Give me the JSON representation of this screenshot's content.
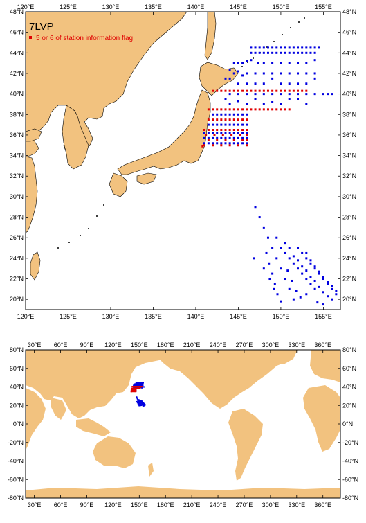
{
  "regional_map": {
    "title": "7LVP",
    "legend": {
      "label": "5 or 6 of station information flag",
      "color": "#e00000"
    },
    "lon_range": [
      120,
      157
    ],
    "lat_range": [
      19,
      48
    ],
    "lon_ticks": [
      "120°E",
      "125°E",
      "130°E",
      "135°E",
      "140°E",
      "145°E",
      "150°E",
      "155°E"
    ],
    "lat_ticks": [
      "20°N",
      "22°N",
      "24°N",
      "26°N",
      "28°N",
      "30°N",
      "32°N",
      "34°N",
      "36°N",
      "38°N",
      "40°N",
      "42°N",
      "44°N",
      "46°N",
      "48°N"
    ]
  },
  "global_map": {
    "lon_range": [
      20,
      380
    ],
    "lat_range": [
      -80,
      80
    ],
    "lon_ticks": [
      "30°E",
      "60°E",
      "90°E",
      "120°E",
      "150°E",
      "180°E",
      "210°E",
      "240°E",
      "270°E",
      "300°E",
      "330°E",
      "360°E"
    ],
    "lat_ticks": [
      "-80°N",
      "-60°N",
      "-40°N",
      "-20°N",
      "0°N",
      "20°N",
      "40°N",
      "60°N",
      "80°N"
    ]
  },
  "colors": {
    "land": "#f2c27f",
    "station": "#0000e0",
    "flagged": "#e00000",
    "track": "#0000e0"
  },
  "chart_data": {
    "type": "scatter",
    "title": "7LVP",
    "series": [
      {
        "name": "",
        "color": "#0000e0",
        "description_points": "blue station dots",
        "points": [
          [
            146.5,
            44.5
          ],
          [
            147,
            44.5
          ],
          [
            147.5,
            44.5
          ],
          [
            148,
            44.5
          ],
          [
            148.5,
            44.5
          ],
          [
            149,
            44.5
          ],
          [
            149.5,
            44.5
          ],
          [
            150,
            44.5
          ],
          [
            150.5,
            44.5
          ],
          [
            151,
            44.5
          ],
          [
            151.5,
            44.5
          ],
          [
            152,
            44.5
          ],
          [
            152.5,
            44.5
          ],
          [
            153,
            44.5
          ],
          [
            153.5,
            44.5
          ],
          [
            154,
            44.5
          ],
          [
            154.5,
            44.5
          ],
          [
            146.5,
            44
          ],
          [
            147,
            44
          ],
          [
            147.5,
            44
          ],
          [
            148,
            44
          ],
          [
            148.5,
            44
          ],
          [
            149,
            44
          ],
          [
            149.5,
            44
          ],
          [
            150,
            44
          ],
          [
            150.5,
            44
          ],
          [
            151,
            44
          ],
          [
            151.5,
            44
          ],
          [
            152,
            44
          ],
          [
            152.5,
            44
          ],
          [
            153,
            44
          ],
          [
            153.5,
            44
          ],
          [
            154,
            44
          ],
          [
            144.5,
            43
          ],
          [
            145,
            43
          ],
          [
            145.5,
            43
          ],
          [
            146,
            43.2
          ],
          [
            146.5,
            43.3
          ],
          [
            147.3,
            43
          ],
          [
            148,
            43
          ],
          [
            149,
            43
          ],
          [
            150,
            43
          ],
          [
            151,
            43
          ],
          [
            152,
            43
          ],
          [
            153,
            43
          ],
          [
            154,
            43.3
          ],
          [
            144,
            42.3
          ],
          [
            144.5,
            42
          ],
          [
            145,
            42.2
          ],
          [
            145.5,
            41.8
          ],
          [
            146,
            42
          ],
          [
            147,
            42
          ],
          [
            148,
            42
          ],
          [
            149,
            42
          ],
          [
            150,
            42
          ],
          [
            151,
            42
          ],
          [
            152,
            42
          ],
          [
            153,
            42
          ],
          [
            154,
            42
          ],
          [
            143.5,
            41.5
          ],
          [
            144,
            41.5
          ],
          [
            145,
            41
          ],
          [
            146,
            41
          ],
          [
            147,
            41
          ],
          [
            148,
            41
          ],
          [
            149,
            41.5
          ],
          [
            150,
            41
          ],
          [
            151,
            41
          ],
          [
            152,
            41
          ],
          [
            153,
            41
          ],
          [
            154,
            41.5
          ],
          [
            144,
            40
          ],
          [
            145,
            40
          ],
          [
            146,
            40
          ],
          [
            147,
            40
          ],
          [
            148,
            40
          ],
          [
            149,
            40
          ],
          [
            150,
            40
          ],
          [
            151,
            40
          ],
          [
            152,
            40
          ],
          [
            153,
            40
          ],
          [
            154,
            40
          ],
          [
            155,
            40
          ],
          [
            155.5,
            40
          ],
          [
            156,
            40
          ],
          [
            143.5,
            39.5
          ],
          [
            144,
            39
          ],
          [
            145,
            39.3
          ],
          [
            146,
            39
          ],
          [
            147,
            39.5
          ],
          [
            148,
            39
          ],
          [
            149,
            39.2
          ],
          [
            150,
            39
          ],
          [
            151,
            39.5
          ],
          [
            152,
            39.5
          ],
          [
            153,
            39
          ],
          [
            142,
            38
          ],
          [
            142.5,
            38
          ],
          [
            143,
            38
          ],
          [
            143.5,
            38
          ],
          [
            144,
            38
          ],
          [
            144.5,
            38
          ],
          [
            145,
            38
          ],
          [
            145.5,
            38
          ],
          [
            146,
            38
          ],
          [
            141.5,
            37
          ],
          [
            142,
            37
          ],
          [
            142.5,
            37
          ],
          [
            143,
            37
          ],
          [
            143.5,
            37
          ],
          [
            144,
            37
          ],
          [
            144.5,
            37
          ],
          [
            145,
            37
          ],
          [
            145.5,
            37
          ],
          [
            146,
            37
          ],
          [
            141,
            36.2
          ],
          [
            141.5,
            36.2
          ],
          [
            142,
            36.2
          ],
          [
            142.5,
            36.2
          ],
          [
            143,
            36.2
          ],
          [
            143.5,
            36.2
          ],
          [
            144,
            36.2
          ],
          [
            144.5,
            36.2
          ],
          [
            145,
            36.2
          ],
          [
            145.5,
            36.2
          ],
          [
            146,
            36.2
          ],
          [
            141,
            35.7
          ],
          [
            141.5,
            35.7
          ],
          [
            142,
            35.7
          ],
          [
            142.5,
            35.7
          ],
          [
            143,
            35.7
          ],
          [
            143.5,
            35.7
          ],
          [
            144,
            35.7
          ],
          [
            144.5,
            35.7
          ],
          [
            145,
            35.7
          ],
          [
            145.5,
            35.7
          ],
          [
            146,
            35.7
          ],
          [
            141,
            35.2
          ],
          [
            141.5,
            35.2
          ],
          [
            142,
            35.2
          ],
          [
            142.5,
            35.2
          ],
          [
            143,
            35.2
          ],
          [
            143.5,
            35.2
          ],
          [
            144,
            35.2
          ],
          [
            144.5,
            35.2
          ],
          [
            145,
            35.2
          ],
          [
            145.5,
            35.2
          ],
          [
            146,
            35.2
          ],
          [
            147,
            29
          ],
          [
            147.5,
            28
          ],
          [
            148,
            27
          ],
          [
            148.5,
            26
          ],
          [
            149,
            25
          ],
          [
            149.5,
            24
          ],
          [
            150,
            23
          ],
          [
            150.5,
            22
          ],
          [
            151,
            21
          ],
          [
            151.5,
            20
          ],
          [
            148.3,
            24.5
          ],
          [
            148.6,
            23.5
          ],
          [
            149,
            22.5
          ],
          [
            149.3,
            21.5
          ],
          [
            149.6,
            20.5
          ],
          [
            150,
            19.8
          ],
          [
            149.5,
            26
          ],
          [
            150,
            25
          ],
          [
            150.5,
            24.5
          ],
          [
            151,
            24
          ],
          [
            151.5,
            23.5
          ],
          [
            152,
            23
          ],
          [
            152.5,
            22.5
          ],
          [
            153,
            22
          ],
          [
            153.5,
            21.5
          ],
          [
            154,
            21
          ],
          [
            150.5,
            25.5
          ],
          [
            151,
            25
          ],
          [
            151.5,
            24.2
          ],
          [
            152,
            23.8
          ],
          [
            152.5,
            23.2
          ],
          [
            153,
            22.8
          ],
          [
            153.5,
            22.2
          ],
          [
            154,
            21.8
          ],
          [
            154.5,
            21.2
          ],
          [
            155,
            20.7
          ],
          [
            155.5,
            20.3
          ],
          [
            152,
            25
          ],
          [
            152.5,
            24.5
          ],
          [
            153,
            24
          ],
          [
            153.5,
            23.5
          ],
          [
            154,
            23
          ],
          [
            154.5,
            22.5
          ],
          [
            155,
            22
          ],
          [
            155.5,
            21.5
          ],
          [
            156,
            21
          ],
          [
            156.5,
            20.5
          ],
          [
            153,
            24.5
          ],
          [
            153.5,
            23.8
          ],
          [
            154,
            23.2
          ],
          [
            154.5,
            22.7
          ],
          [
            155,
            22.2
          ],
          [
            155.5,
            21.7
          ],
          [
            156,
            21.3
          ],
          [
            156.5,
            20.8
          ],
          [
            148,
            23
          ],
          [
            148.7,
            22
          ],
          [
            149.2,
            21
          ],
          [
            150.8,
            22.8
          ],
          [
            151.3,
            21.8
          ],
          [
            151.8,
            20.8
          ],
          [
            152.3,
            20.2
          ],
          [
            153,
            20.5
          ],
          [
            154.3,
            19.7
          ],
          [
            155,
            19.5
          ],
          [
            156,
            20
          ],
          [
            146.8,
            24
          ]
        ]
      },
      {
        "name": "5 or 6 of station information flag",
        "color": "#e00000",
        "description_points": "red flagged stations",
        "points": [
          [
            142,
            40.3
          ],
          [
            142.5,
            40.3
          ],
          [
            143,
            40.3
          ],
          [
            143.5,
            40.3
          ],
          [
            144,
            40.3
          ],
          [
            144.5,
            40.3
          ],
          [
            145,
            40.3
          ],
          [
            145.5,
            40.3
          ],
          [
            146,
            40.3
          ],
          [
            146.5,
            40.3
          ],
          [
            147,
            40.3
          ],
          [
            147.5,
            40.3
          ],
          [
            148,
            40.3
          ],
          [
            148.5,
            40.3
          ],
          [
            149,
            40.3
          ],
          [
            149.5,
            40.3
          ],
          [
            150,
            40.3
          ],
          [
            150.5,
            40.3
          ],
          [
            151,
            40.3
          ],
          [
            151.5,
            40.3
          ],
          [
            152,
            40.3
          ],
          [
            152.5,
            40.3
          ],
          [
            153,
            40.3
          ],
          [
            141.5,
            38.5
          ],
          [
            142,
            38.5
          ],
          [
            142.5,
            38.5
          ],
          [
            143,
            38.5
          ],
          [
            143.5,
            38.5
          ],
          [
            144,
            38.5
          ],
          [
            144.5,
            38.5
          ],
          [
            145,
            38.5
          ],
          [
            145.5,
            38.5
          ],
          [
            146,
            38.5
          ],
          [
            146.5,
            38.5
          ],
          [
            147,
            38.5
          ],
          [
            147.5,
            38.5
          ],
          [
            148,
            38.5
          ],
          [
            148.5,
            38.5
          ],
          [
            149,
            38.5
          ],
          [
            149.5,
            38.5
          ],
          [
            150,
            38.5
          ],
          [
            150.5,
            38.5
          ],
          [
            151,
            38.5
          ],
          [
            141.5,
            37.5
          ],
          [
            142,
            37.5
          ],
          [
            142.5,
            37.5
          ],
          [
            143,
            37.5
          ],
          [
            143.5,
            37.5
          ],
          [
            144,
            37.5
          ],
          [
            144.5,
            37.5
          ],
          [
            145,
            37.5
          ],
          [
            145.5,
            37.5
          ],
          [
            146,
            37.5
          ],
          [
            141,
            36.5
          ],
          [
            141.5,
            36.5
          ],
          [
            142,
            36.5
          ],
          [
            142.5,
            36.5
          ],
          [
            143,
            36.5
          ],
          [
            143.5,
            36.5
          ],
          [
            144,
            36.5
          ],
          [
            144.5,
            36.5
          ],
          [
            145,
            36.5
          ],
          [
            145.5,
            36.5
          ],
          [
            146,
            36.5
          ],
          [
            141.2,
            36
          ],
          [
            142.2,
            36
          ],
          [
            143.2,
            36
          ],
          [
            144.2,
            36
          ],
          [
            145.2,
            36
          ],
          [
            146,
            36
          ],
          [
            141.5,
            35.5
          ],
          [
            142.5,
            35.5
          ],
          [
            143.5,
            35.5
          ],
          [
            144.5,
            35.5
          ],
          [
            145.5,
            35.5
          ],
          [
            146,
            35.5
          ],
          [
            141,
            35
          ],
          [
            142,
            35
          ],
          [
            143,
            35
          ],
          [
            144,
            35
          ],
          [
            145,
            35
          ],
          [
            146,
            35
          ],
          [
            140.8,
            34.9
          ]
        ]
      }
    ]
  }
}
